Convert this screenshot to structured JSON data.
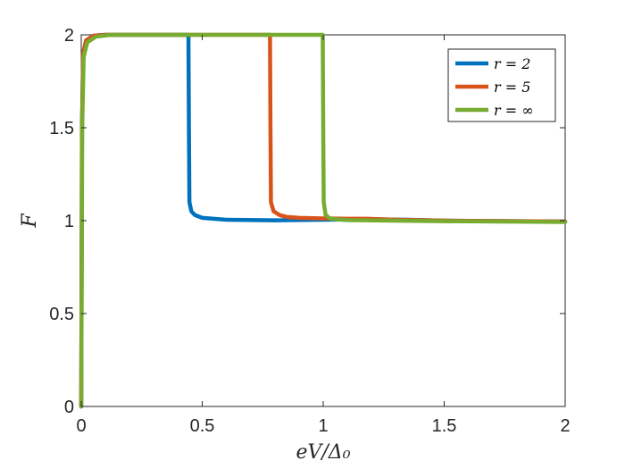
{
  "chart_data": {
    "type": "line",
    "xlabel": "eV/Δ₀",
    "ylabel": "F",
    "xlim": [
      0,
      2
    ],
    "ylim": [
      0,
      2
    ],
    "x_ticks": [
      "0",
      "0.5",
      "1",
      "1.5",
      "2"
    ],
    "y_ticks": [
      "0",
      "0.5",
      "1",
      "1.5",
      "2"
    ],
    "grid": false,
    "legend_position": "top-right",
    "series": [
      {
        "name": "r = 2",
        "color": "#0072BD",
        "points": [
          [
            0,
            0
          ],
          [
            0.003,
            1.5
          ],
          [
            0.008,
            1.9
          ],
          [
            0.02,
            1.97
          ],
          [
            0.05,
            1.995
          ],
          [
            0.1,
            2.0
          ],
          [
            0.443,
            2.0
          ],
          [
            0.445,
            1.5
          ],
          [
            0.447,
            1.1
          ],
          [
            0.455,
            1.05
          ],
          [
            0.47,
            1.03
          ],
          [
            0.5,
            1.015
          ],
          [
            0.6,
            1.005
          ],
          [
            0.8,
            1.002
          ],
          [
            1.0,
            1.005
          ],
          [
            1.2,
            1.007
          ],
          [
            1.35,
            1.005
          ],
          [
            1.5,
            1.0
          ],
          [
            2.0,
            0.995
          ]
        ]
      },
      {
        "name": "r = 5",
        "color": "#D95319",
        "points": [
          [
            0,
            0
          ],
          [
            0.003,
            1.5
          ],
          [
            0.008,
            1.9
          ],
          [
            0.02,
            1.97
          ],
          [
            0.05,
            1.995
          ],
          [
            0.1,
            2.0
          ],
          [
            0.78,
            2.0
          ],
          [
            0.782,
            1.5
          ],
          [
            0.784,
            1.1
          ],
          [
            0.795,
            1.05
          ],
          [
            0.82,
            1.03
          ],
          [
            0.85,
            1.02
          ],
          [
            0.9,
            1.015
          ],
          [
            1.0,
            1.012
          ],
          [
            1.1,
            1.01
          ],
          [
            1.18,
            1.01
          ],
          [
            1.3,
            1.005
          ],
          [
            1.5,
            1.0
          ],
          [
            2.0,
            0.995
          ]
        ]
      },
      {
        "name": "r = ∞",
        "color": "#77AC30",
        "points": [
          [
            0,
            0
          ],
          [
            0.004,
            1.5
          ],
          [
            0.01,
            1.88
          ],
          [
            0.025,
            1.96
          ],
          [
            0.06,
            1.99
          ],
          [
            0.12,
            2.0
          ],
          [
            0.998,
            2.0
          ],
          [
            1.0,
            1.5
          ],
          [
            1.002,
            1.1
          ],
          [
            1.01,
            1.03
          ],
          [
            1.03,
            1.01
          ],
          [
            1.1,
            1.003
          ],
          [
            1.5,
            0.997
          ],
          [
            2.0,
            0.993
          ]
        ]
      }
    ]
  }
}
